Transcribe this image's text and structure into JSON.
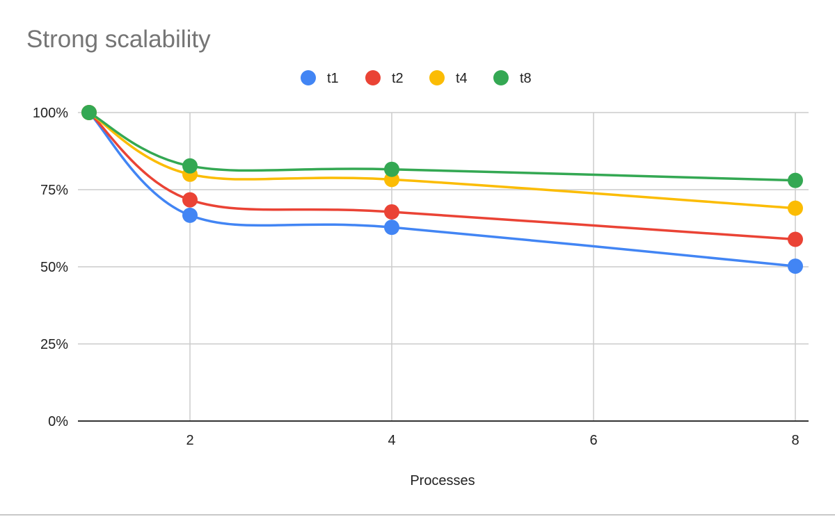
{
  "chart_data": {
    "type": "line",
    "title": "Strong scalability",
    "xlabel": "Processes",
    "ylabel": "",
    "x": [
      1,
      2,
      4,
      8
    ],
    "xlim": [
      1,
      8
    ],
    "ylim": [
      0,
      100
    ],
    "x_ticks": [
      2,
      4,
      6,
      8
    ],
    "y_ticks": [
      0,
      25,
      50,
      75,
      100
    ],
    "y_tick_labels": [
      "0%",
      "25%",
      "50%",
      "75%",
      "100%"
    ],
    "grid": true,
    "smooth": true,
    "legend_position": "top-center",
    "series": [
      {
        "name": "t1",
        "color": "#4285F4",
        "values": [
          100,
          66.7,
          62.8,
          50.2
        ]
      },
      {
        "name": "t2",
        "color": "#EA4335",
        "values": [
          100,
          71.7,
          67.8,
          58.9
        ]
      },
      {
        "name": "t4",
        "color": "#FBBC04",
        "values": [
          100,
          80.0,
          78.3,
          69.0
        ]
      },
      {
        "name": "t8",
        "color": "#34A853",
        "values": [
          100,
          82.7,
          81.6,
          78.0
        ]
      }
    ]
  }
}
